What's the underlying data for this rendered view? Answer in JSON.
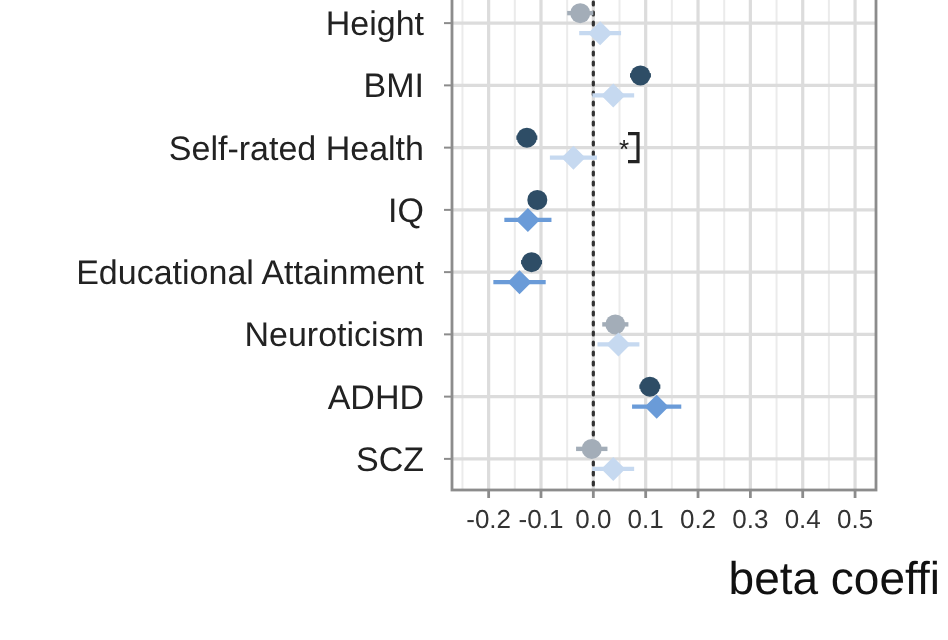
{
  "chart_data": {
    "type": "scatter",
    "orientation": "horizontal",
    "xlabel": "beta coeffi",
    "categories": [
      "Height",
      "BMI",
      "Self-rated Health",
      "IQ",
      "Educational Attainment",
      "Neuroticism",
      "ADHD",
      "SCZ"
    ],
    "series": [
      {
        "marker": "circle",
        "colors": [
          "#a3adb8",
          "#2e4d66",
          "#2e4d66",
          "#2e4d66",
          "#2e4d66",
          "#a3adb8",
          "#2e4d66",
          "#a3adb8"
        ],
        "values": [
          -0.025,
          0.09,
          -0.127,
          -0.107,
          -0.118,
          0.042,
          0.108,
          -0.003
        ],
        "errors": [
          0.025,
          0.02,
          0.02,
          0.015,
          0.02,
          0.025,
          0.02,
          0.03
        ]
      },
      {
        "marker": "diamond",
        "colors": [
          "#c6d9f0",
          "#c6d9f0",
          "#c6d9f0",
          "#6a9bd8",
          "#6a9bd8",
          "#c6d9f0",
          "#6a9bd8",
          "#c6d9f0"
        ],
        "values": [
          0.013,
          0.038,
          -0.038,
          -0.125,
          -0.141,
          0.048,
          0.121,
          0.038
        ],
        "errors": [
          0.04,
          0.04,
          0.045,
          0.045,
          0.05,
          0.04,
          0.047,
          0.04
        ]
      }
    ],
    "xlim": [
      -0.27,
      0.54
    ],
    "xticks": [
      -0.2,
      -0.1,
      {
        "value": 0,
        "label": "0.0"
      },
      0.1,
      0.2,
      0.3,
      0.4,
      0.5
    ],
    "grid": true,
    "ref_lines": [
      {
        "axis": "x",
        "value": 0,
        "line_style": "dotted",
        "color": "#333333"
      }
    ],
    "annotations": [
      "*"
    ]
  }
}
